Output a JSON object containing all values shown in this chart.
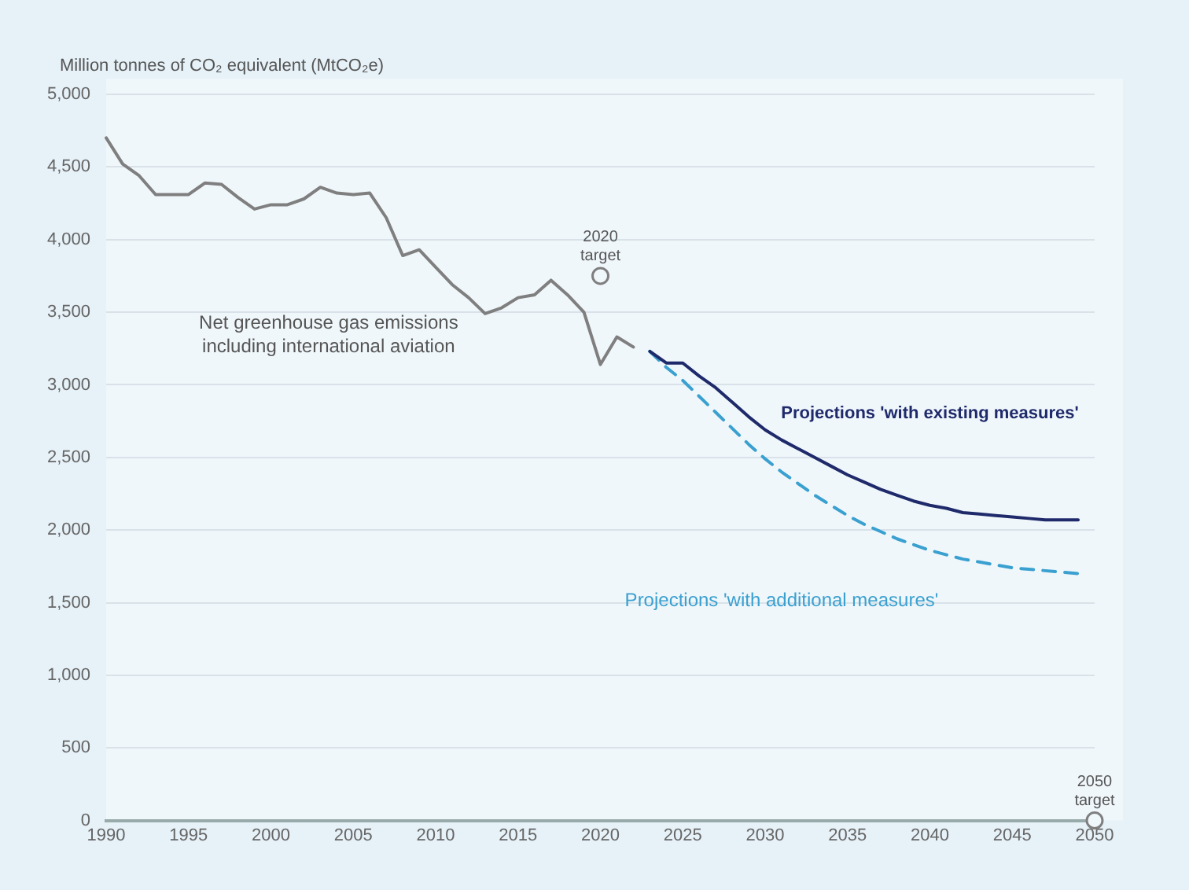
{
  "chart_data": {
    "type": "line",
    "ylabel": "Million tonnes of CO₂ equivalent (MtCO₂e)",
    "xlim": [
      1990,
      2050
    ],
    "xticks": [
      1990,
      1995,
      2000,
      2005,
      2010,
      2015,
      2020,
      2025,
      2030,
      2035,
      2040,
      2045,
      2050
    ],
    "ylim": [
      0,
      5000
    ],
    "yticks": [
      0,
      500,
      {
        "value": 1000,
        "label": "1,000"
      },
      {
        "value": 1500,
        "label": "1,500"
      },
      {
        "value": 2000,
        "label": "2,000"
      },
      {
        "value": 2500,
        "label": "2,500"
      },
      {
        "value": 3000,
        "label": "3,000"
      },
      {
        "value": 3500,
        "label": "3,500"
      },
      {
        "value": 4000,
        "label": "4,000"
      },
      {
        "value": 4500,
        "label": "4,500"
      },
      {
        "value": 5000,
        "label": "5,000"
      }
    ],
    "grid": "y",
    "legend": false,
    "marker": "none",
    "series": [
      {
        "name": "Net greenhouse gas emissions including international aviation",
        "color": "#7f7f7f",
        "line_style": "solid",
        "x": [
          1990,
          1991,
          1992,
          1993,
          1994,
          1995,
          1996,
          1997,
          1998,
          1999,
          2000,
          2001,
          2002,
          2003,
          2004,
          2005,
          2006,
          2007,
          2008,
          2009,
          2010,
          2011,
          2012,
          2013,
          2014,
          2015,
          2016,
          2017,
          2018,
          2019,
          2020,
          2021,
          2022
        ],
        "values": [
          4700,
          4520,
          4440,
          4310,
          4310,
          4310,
          4390,
          4380,
          4290,
          4210,
          4240,
          4240,
          4280,
          4360,
          4320,
          4310,
          4320,
          4150,
          3890,
          3930,
          3810,
          3690,
          3600,
          3490,
          3530,
          3600,
          3620,
          3720,
          3620,
          3500,
          3140,
          3330,
          3260
        ]
      },
      {
        "name": "Projections 'with existing measures'",
        "color": "#1f2a6b",
        "line_style": "solid",
        "x": [
          2023,
          2024,
          2025,
          2026,
          2027,
          2028,
          2029,
          2030,
          2031,
          2032,
          2033,
          2034,
          2035,
          2036,
          2037,
          2038,
          2039,
          2040,
          2041,
          2042,
          2043,
          2044,
          2045,
          2046,
          2047,
          2048,
          2049
        ],
        "values": [
          3230,
          3150,
          3150,
          3060,
          2980,
          2880,
          2780,
          2690,
          2620,
          2560,
          2500,
          2440,
          2380,
          2330,
          2280,
          2240,
          2200,
          2170,
          2150,
          2120,
          2110,
          2100,
          2090,
          2080,
          2070,
          2070,
          2070
        ]
      },
      {
        "name": "Projections 'with additional measures'",
        "color": "#3aa0d0",
        "line_style": "dashed",
        "x": [
          2023,
          2024,
          2025,
          2026,
          2027,
          2028,
          2029,
          2030,
          2031,
          2032,
          2033,
          2034,
          2035,
          2036,
          2037,
          2038,
          2039,
          2040,
          2041,
          2042,
          2043,
          2044,
          2045,
          2046,
          2047,
          2048,
          2049
        ],
        "values": [
          3230,
          3120,
          3030,
          2920,
          2810,
          2700,
          2590,
          2490,
          2400,
          2320,
          2240,
          2170,
          2100,
          2040,
          1990,
          1940,
          1900,
          1860,
          1830,
          1800,
          1780,
          1760,
          1740,
          1730,
          1720,
          1710,
          1700
        ]
      },
      {
        "type": "scatter",
        "marker": "circle",
        "color": "#7f7f7f",
        "x": [
          2020,
          2050
        ],
        "values": [
          3750,
          0
        ]
      }
    ],
    "annotations": [
      {
        "text": "2020 target",
        "x": 2020,
        "y": 3750
      },
      {
        "text": "2050 target",
        "x": 2050,
        "y": 0
      }
    ]
  }
}
